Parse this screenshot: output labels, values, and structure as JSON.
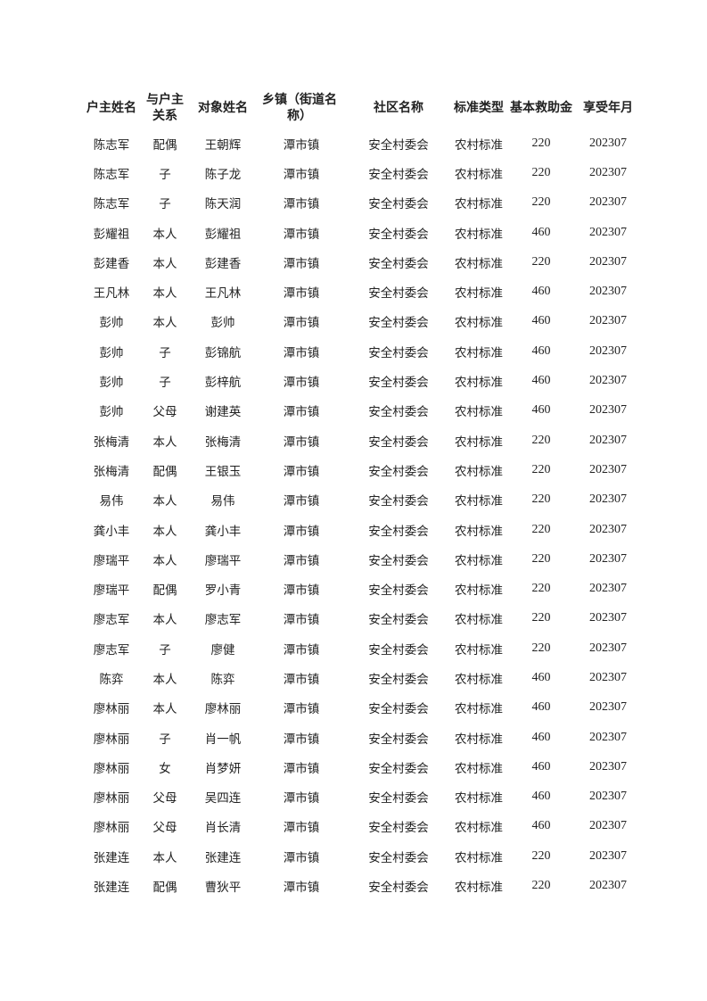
{
  "headers": [
    "户主姓名",
    "与户主关系",
    "对象姓名",
    "乡镇（街道名称）",
    "社区名称",
    "标准类型",
    "基本救助金",
    "享受年月"
  ],
  "rows": [
    [
      "陈志军",
      "配偶",
      "王朝辉",
      "潭市镇",
      "安全村委会",
      "农村标准",
      "220",
      "202307"
    ],
    [
      "陈志军",
      "子",
      "陈子龙",
      "潭市镇",
      "安全村委会",
      "农村标准",
      "220",
      "202307"
    ],
    [
      "陈志军",
      "子",
      "陈天润",
      "潭市镇",
      "安全村委会",
      "农村标准",
      "220",
      "202307"
    ],
    [
      "彭耀祖",
      "本人",
      "彭耀祖",
      "潭市镇",
      "安全村委会",
      "农村标准",
      "460",
      "202307"
    ],
    [
      "彭建香",
      "本人",
      "彭建香",
      "潭市镇",
      "安全村委会",
      "农村标准",
      "220",
      "202307"
    ],
    [
      "王凡林",
      "本人",
      "王凡林",
      "潭市镇",
      "安全村委会",
      "农村标准",
      "460",
      "202307"
    ],
    [
      "彭帅",
      "本人",
      "彭帅",
      "潭市镇",
      "安全村委会",
      "农村标准",
      "460",
      "202307"
    ],
    [
      "彭帅",
      "子",
      "彭锦航",
      "潭市镇",
      "安全村委会",
      "农村标准",
      "460",
      "202307"
    ],
    [
      "彭帅",
      "子",
      "彭梓航",
      "潭市镇",
      "安全村委会",
      "农村标准",
      "460",
      "202307"
    ],
    [
      "彭帅",
      "父母",
      "谢建英",
      "潭市镇",
      "安全村委会",
      "农村标准",
      "460",
      "202307"
    ],
    [
      "张梅清",
      "本人",
      "张梅清",
      "潭市镇",
      "安全村委会",
      "农村标准",
      "220",
      "202307"
    ],
    [
      "张梅清",
      "配偶",
      "王银玉",
      "潭市镇",
      "安全村委会",
      "农村标准",
      "220",
      "202307"
    ],
    [
      "易伟",
      "本人",
      "易伟",
      "潭市镇",
      "安全村委会",
      "农村标准",
      "220",
      "202307"
    ],
    [
      "龚小丰",
      "本人",
      "龚小丰",
      "潭市镇",
      "安全村委会",
      "农村标准",
      "220",
      "202307"
    ],
    [
      "廖瑞平",
      "本人",
      "廖瑞平",
      "潭市镇",
      "安全村委会",
      "农村标准",
      "220",
      "202307"
    ],
    [
      "廖瑞平",
      "配偶",
      "罗小青",
      "潭市镇",
      "安全村委会",
      "农村标准",
      "220",
      "202307"
    ],
    [
      "廖志军",
      "本人",
      "廖志军",
      "潭市镇",
      "安全村委会",
      "农村标准",
      "220",
      "202307"
    ],
    [
      "廖志军",
      "子",
      "廖健",
      "潭市镇",
      "安全村委会",
      "农村标准",
      "220",
      "202307"
    ],
    [
      "陈弈",
      "本人",
      "陈弈",
      "潭市镇",
      "安全村委会",
      "农村标准",
      "460",
      "202307"
    ],
    [
      "廖林丽",
      "本人",
      "廖林丽",
      "潭市镇",
      "安全村委会",
      "农村标准",
      "460",
      "202307"
    ],
    [
      "廖林丽",
      "子",
      "肖一帆",
      "潭市镇",
      "安全村委会",
      "农村标准",
      "460",
      "202307"
    ],
    [
      "廖林丽",
      "女",
      "肖梦妍",
      "潭市镇",
      "安全村委会",
      "农村标准",
      "460",
      "202307"
    ],
    [
      "廖林丽",
      "父母",
      "吴四连",
      "潭市镇",
      "安全村委会",
      "农村标准",
      "460",
      "202307"
    ],
    [
      "廖林丽",
      "父母",
      "肖长清",
      "潭市镇",
      "安全村委会",
      "农村标准",
      "460",
      "202307"
    ],
    [
      "张建连",
      "本人",
      "张建连",
      "潭市镇",
      "安全村委会",
      "农村标准",
      "220",
      "202307"
    ],
    [
      "张建连",
      "配偶",
      "曹狄平",
      "潭市镇",
      "安全村委会",
      "农村标准",
      "220",
      "202307"
    ]
  ]
}
